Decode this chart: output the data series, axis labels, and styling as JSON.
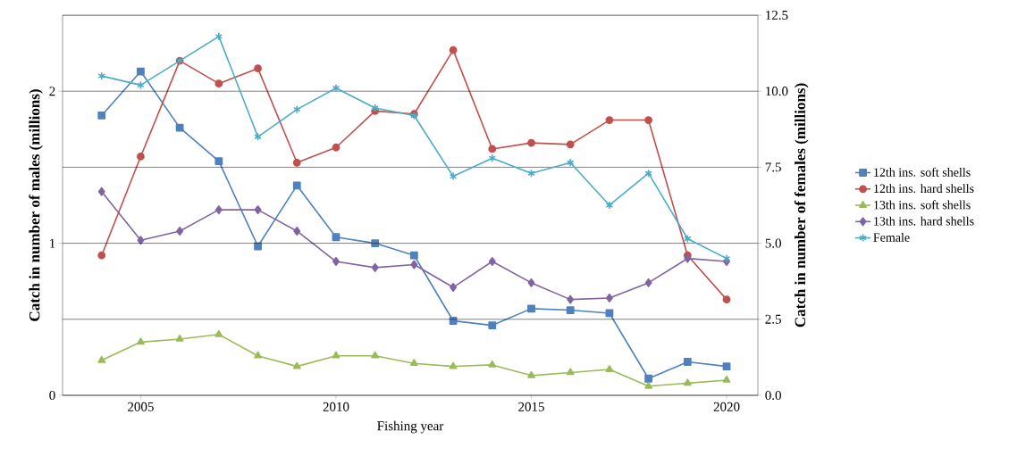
{
  "chart_data": {
    "type": "line",
    "xlabel": "Fishing year",
    "ylabel": "Catch in number of males (millions)",
    "y2label": "Catch in number of females (millions)",
    "x": [
      2004,
      2005,
      2006,
      2007,
      2008,
      2009,
      2010,
      2011,
      2012,
      2013,
      2014,
      2015,
      2016,
      2017,
      2018,
      2019,
      2020
    ],
    "xlim": [
      2003,
      2020.8
    ],
    "xticks": [
      2005,
      2010,
      2015,
      2020
    ],
    "ylim": [
      0,
      2.5
    ],
    "yticks": [
      0,
      1,
      2
    ],
    "y2lim": [
      0,
      12.5
    ],
    "y2ticks": [
      {
        "value": 0,
        "label": "0.0"
      },
      {
        "value": 2.5,
        "label": "2.5"
      },
      {
        "value": 5,
        "label": "5.0"
      },
      {
        "value": 7.5,
        "label": "7.5"
      },
      {
        "value": 10,
        "label": "10.0"
      },
      {
        "value": 12.5,
        "label": "12.5"
      }
    ],
    "grid": "y",
    "legend": "right",
    "series": [
      {
        "name": "12th ins. soft shells",
        "color": "#4f81bd",
        "marker": "square",
        "values": [
          1.84,
          2.13,
          1.76,
          1.54,
          0.98,
          1.38,
          1.04,
          1.0,
          0.92,
          0.49,
          0.46,
          0.57,
          0.56,
          0.54,
          0.11,
          0.22,
          0.19
        ]
      },
      {
        "name": "12th ins. hard shells",
        "color": "#c0504d",
        "marker": "circle",
        "values": [
          0.92,
          1.57,
          2.2,
          2.05,
          2.15,
          1.53,
          1.63,
          1.87,
          1.85,
          2.27,
          1.62,
          1.66,
          1.65,
          1.81,
          1.81,
          0.92,
          0.63
        ]
      },
      {
        "name": "13th ins. soft shells",
        "color": "#9bbb59",
        "marker": "triangle",
        "values": [
          0.23,
          0.35,
          0.37,
          0.4,
          0.26,
          0.19,
          0.26,
          0.26,
          0.21,
          0.19,
          0.2,
          0.13,
          0.15,
          0.17,
          0.06,
          0.08,
          0.1
        ]
      },
      {
        "name": "13th ins. hard shells",
        "color": "#8064a2",
        "marker": "diamond",
        "values": [
          1.34,
          1.02,
          1.08,
          1.22,
          1.22,
          1.08,
          0.88,
          0.84,
          0.86,
          0.71,
          0.88,
          0.74,
          0.63,
          0.64,
          0.74,
          0.9,
          0.88
        ]
      },
      {
        "name": "Female",
        "color": "#4bacc6",
        "marker": "cross",
        "axis": "y2",
        "values": [
          10.5,
          10.2,
          11.0,
          11.8,
          8.5,
          9.4,
          10.1,
          9.45,
          9.2,
          7.2,
          7.8,
          7.3,
          7.65,
          6.25,
          7.3,
          5.15,
          4.5
        ]
      }
    ]
  }
}
